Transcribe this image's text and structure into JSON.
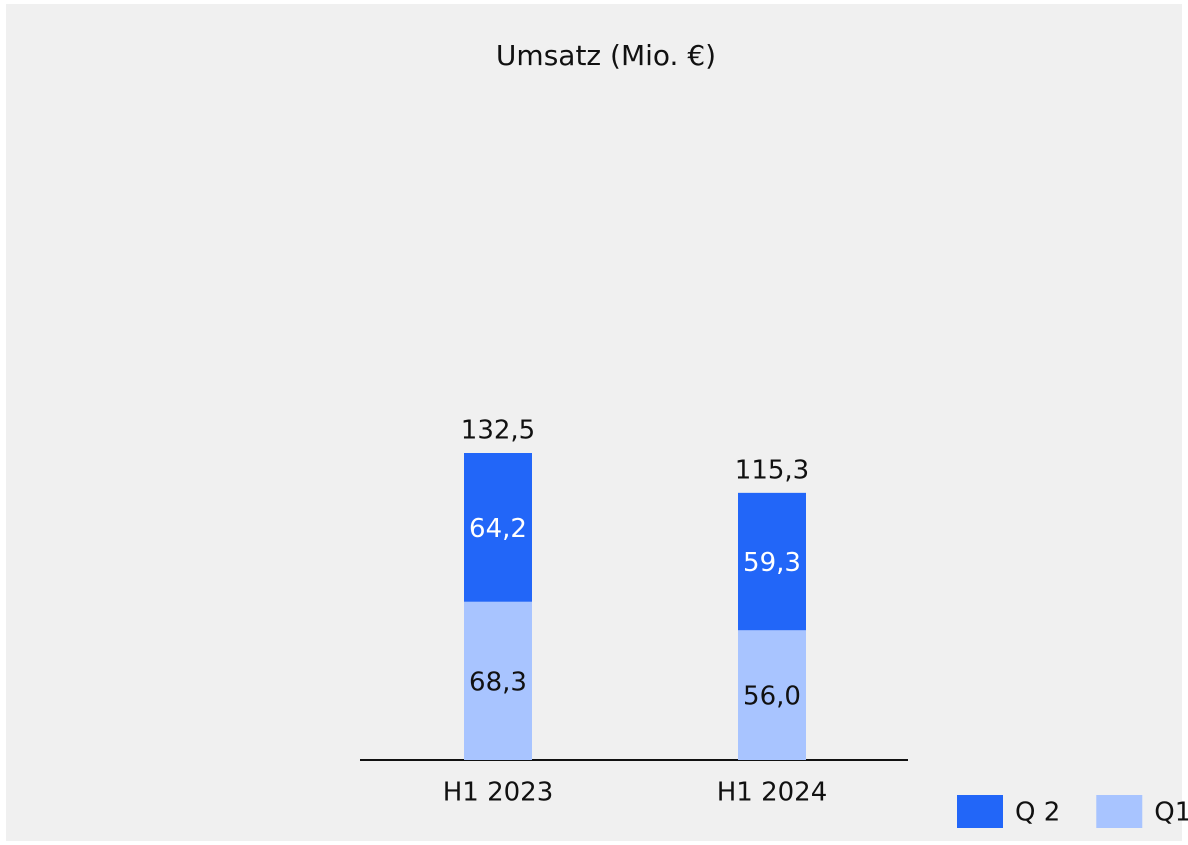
{
  "chart_data": {
    "type": "stacked_bar",
    "title": "Umsatz (Mio. €)",
    "categories": [
      "H1 2023",
      "H1 2024"
    ],
    "series": [
      {
        "name": "Q1",
        "color": "#a8c4ff",
        "label_color": "#111111",
        "values": [
          68.3,
          56.0
        ],
        "value_labels": [
          "68,3",
          "56,0"
        ]
      },
      {
        "name": "Q 2",
        "color": "#2266f8",
        "label_color": "#ffffff",
        "values": [
          64.2,
          59.3
        ],
        "value_labels": [
          "64,2",
          "59,3"
        ]
      }
    ],
    "totals": [
      132.5,
      115.3
    ],
    "total_labels": [
      "132,5",
      "115,3"
    ],
    "legend": "bottom-right"
  }
}
